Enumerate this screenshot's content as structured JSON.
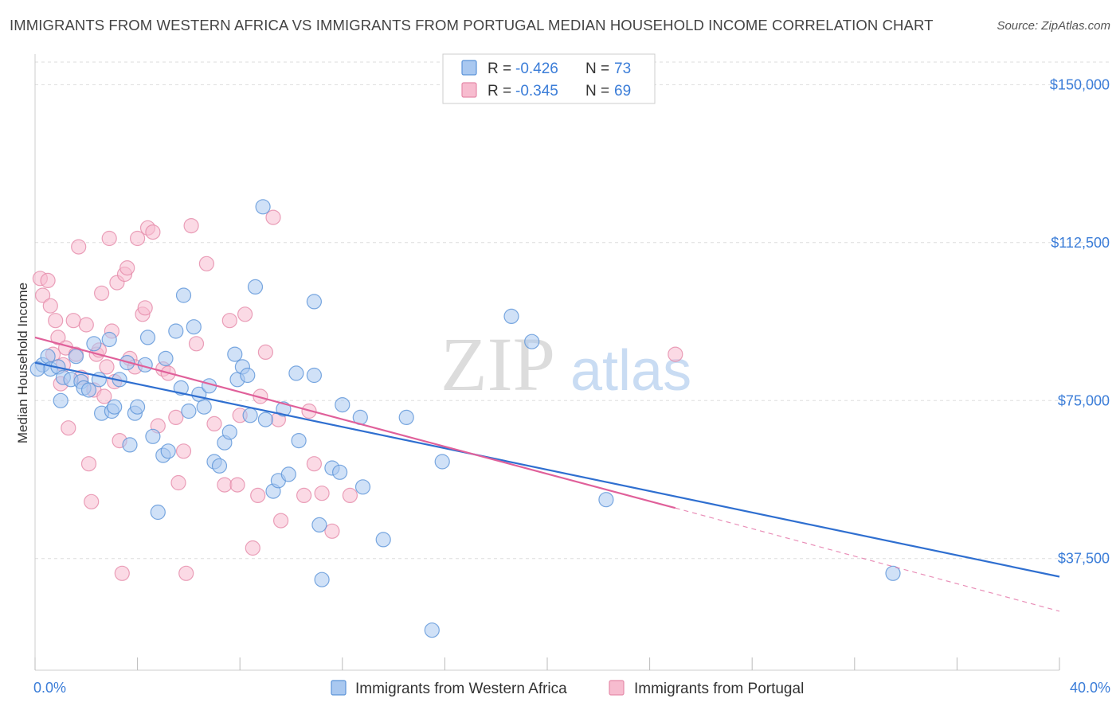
{
  "header": {
    "title": "IMMIGRANTS FROM WESTERN AFRICA VS IMMIGRANTS FROM PORTUGAL MEDIAN HOUSEHOLD INCOME CORRELATION CHART",
    "source": "Source: ZipAtlas.com"
  },
  "watermark": {
    "zip": "ZIP",
    "atlas": "atlas"
  },
  "colors": {
    "blue_fill": "#a9c8f0",
    "blue_stroke": "#5b93d8",
    "blue_line": "#2f6fd0",
    "pink_fill": "#f7bccf",
    "pink_stroke": "#e58aa9",
    "pink_line": "#e0609a",
    "grid": "#dddddd",
    "axis_text": "#3b7dd8"
  },
  "legend": {
    "rows": [
      {
        "r_label": "R = ",
        "r_value": "-0.426",
        "n_label": "N = ",
        "n_value": "73"
      },
      {
        "r_label": "R = ",
        "r_value": "-0.345",
        "n_label": "N = ",
        "n_value": "69"
      }
    ]
  },
  "chart_data": {
    "type": "scatter",
    "title": "IMMIGRANTS FROM WESTERN AFRICA VS IMMIGRANTS FROM PORTUGAL MEDIAN HOUSEHOLD INCOME CORRELATION CHART",
    "xlabel": "",
    "ylabel": "Median Household Income",
    "xlim": [
      0,
      40
    ],
    "ylim": [
      11000,
      158000
    ],
    "x_tick_labels": [
      "0.0%",
      "40.0%"
    ],
    "y_ticks": [
      37500,
      75000,
      112500,
      150000
    ],
    "y_tick_labels": [
      "$37,500",
      "$75,000",
      "$112,500",
      "$150,000"
    ],
    "grid": true,
    "legend_placement": "top-center",
    "series": [
      {
        "name": "Immigrants from Western Africa",
        "r": -0.426,
        "n": 73,
        "trend": {
          "x": [
            0,
            40
          ],
          "y": [
            84000,
            33200
          ],
          "dashed_extension": null
        },
        "points": [
          [
            0.3,
            83500
          ],
          [
            0.5,
            85500
          ],
          [
            0.6,
            82500
          ],
          [
            0.9,
            83000
          ],
          [
            1.0,
            75000
          ],
          [
            1.1,
            80500
          ],
          [
            1.4,
            80000
          ],
          [
            1.6,
            85500
          ],
          [
            1.8,
            79500
          ],
          [
            1.9,
            78000
          ],
          [
            2.1,
            77500
          ],
          [
            2.3,
            88500
          ],
          [
            2.5,
            80000
          ],
          [
            2.6,
            72000
          ],
          [
            2.9,
            89500
          ],
          [
            3.0,
            72500
          ],
          [
            3.1,
            73500
          ],
          [
            3.3,
            80000
          ],
          [
            3.6,
            84000
          ],
          [
            3.7,
            64500
          ],
          [
            3.9,
            72000
          ],
          [
            4.0,
            73500
          ],
          [
            4.3,
            83500
          ],
          [
            4.4,
            90000
          ],
          [
            4.6,
            66500
          ],
          [
            4.8,
            48500
          ],
          [
            5.0,
            62000
          ],
          [
            5.1,
            85000
          ],
          [
            5.2,
            63000
          ],
          [
            5.5,
            91500
          ],
          [
            5.7,
            78000
          ],
          [
            5.8,
            100000
          ],
          [
            6.0,
            72500
          ],
          [
            6.2,
            92500
          ],
          [
            6.4,
            76500
          ],
          [
            6.6,
            73500
          ],
          [
            6.8,
            78500
          ],
          [
            7.0,
            60500
          ],
          [
            7.2,
            59500
          ],
          [
            7.4,
            65000
          ],
          [
            7.6,
            67500
          ],
          [
            7.8,
            86000
          ],
          [
            7.9,
            80000
          ],
          [
            8.1,
            83000
          ],
          [
            8.3,
            81000
          ],
          [
            8.4,
            71500
          ],
          [
            8.6,
            102000
          ],
          [
            8.9,
            121000
          ],
          [
            9.0,
            70500
          ],
          [
            9.3,
            53500
          ],
          [
            9.5,
            56000
          ],
          [
            9.7,
            73000
          ],
          [
            9.9,
            57500
          ],
          [
            10.2,
            81500
          ],
          [
            10.3,
            65500
          ],
          [
            10.9,
            81000
          ],
          [
            10.9,
            98500
          ],
          [
            11.1,
            45500
          ],
          [
            11.2,
            32500
          ],
          [
            11.6,
            59000
          ],
          [
            11.9,
            58000
          ],
          [
            12.0,
            74000
          ],
          [
            12.7,
            71000
          ],
          [
            12.8,
            54500
          ],
          [
            13.6,
            42000
          ],
          [
            14.5,
            71000
          ],
          [
            15.5,
            20500
          ],
          [
            15.9,
            60500
          ],
          [
            18.6,
            95000
          ],
          [
            19.4,
            89000
          ],
          [
            22.3,
            51500
          ],
          [
            33.5,
            34000
          ],
          [
            0.1,
            82500
          ]
        ]
      },
      {
        "name": "Immigrants from Portugal",
        "r": -0.345,
        "n": 69,
        "trend": {
          "x": [
            0,
            25
          ],
          "y": [
            90000,
            49500
          ],
          "dashed_extension": {
            "x": [
              25,
              40
            ],
            "y": [
              49500,
              25000
            ]
          }
        },
        "points": [
          [
            0.2,
            104000
          ],
          [
            0.3,
            100000
          ],
          [
            0.5,
            103500
          ],
          [
            0.6,
            97500
          ],
          [
            0.7,
            86000
          ],
          [
            0.8,
            94000
          ],
          [
            0.9,
            90000
          ],
          [
            1.0,
            79000
          ],
          [
            1.1,
            83500
          ],
          [
            1.2,
            87500
          ],
          [
            1.3,
            68500
          ],
          [
            1.5,
            94000
          ],
          [
            1.6,
            86000
          ],
          [
            1.7,
            111500
          ],
          [
            1.8,
            80500
          ],
          [
            2.0,
            93000
          ],
          [
            2.1,
            60000
          ],
          [
            2.2,
            51000
          ],
          [
            2.3,
            77500
          ],
          [
            2.4,
            86000
          ],
          [
            2.5,
            87000
          ],
          [
            2.6,
            100500
          ],
          [
            2.7,
            76000
          ],
          [
            2.8,
            83000
          ],
          [
            2.9,
            113500
          ],
          [
            3.0,
            91500
          ],
          [
            3.1,
            79500
          ],
          [
            3.2,
            103000
          ],
          [
            3.3,
            65500
          ],
          [
            3.4,
            34000
          ],
          [
            3.5,
            105000
          ],
          [
            3.6,
            106500
          ],
          [
            3.7,
            85000
          ],
          [
            3.9,
            83000
          ],
          [
            4.0,
            113500
          ],
          [
            4.2,
            95500
          ],
          [
            4.3,
            97000
          ],
          [
            4.4,
            116000
          ],
          [
            4.6,
            115000
          ],
          [
            4.8,
            69000
          ],
          [
            5.0,
            82500
          ],
          [
            5.2,
            81500
          ],
          [
            5.5,
            71000
          ],
          [
            5.6,
            55500
          ],
          [
            5.8,
            63000
          ],
          [
            5.9,
            34000
          ],
          [
            6.1,
            116500
          ],
          [
            6.3,
            88500
          ],
          [
            6.7,
            107500
          ],
          [
            7.0,
            69500
          ],
          [
            7.4,
            55000
          ],
          [
            7.6,
            94000
          ],
          [
            7.9,
            55000
          ],
          [
            8.0,
            71500
          ],
          [
            8.2,
            95500
          ],
          [
            8.5,
            40000
          ],
          [
            8.7,
            52500
          ],
          [
            8.8,
            76000
          ],
          [
            9.0,
            86500
          ],
          [
            9.3,
            118500
          ],
          [
            9.5,
            70500
          ],
          [
            9.6,
            46500
          ],
          [
            10.5,
            52500
          ],
          [
            10.7,
            72500
          ],
          [
            10.9,
            60000
          ],
          [
            11.2,
            53000
          ],
          [
            11.6,
            44000
          ],
          [
            12.3,
            52500
          ],
          [
            25.0,
            86000
          ]
        ]
      }
    ]
  },
  "bottom_legend": {
    "items": [
      {
        "label": "Immigrants from Western Africa"
      },
      {
        "label": "Immigrants from Portugal"
      }
    ]
  }
}
